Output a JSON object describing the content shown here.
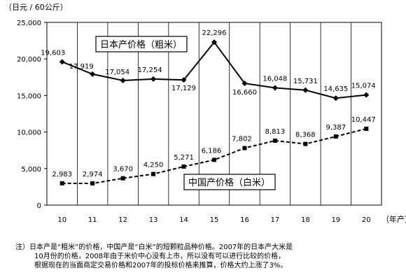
{
  "chart_data": {
    "type": "line",
    "y_unit_label": "（日元 / 60公斤）",
    "x_unit_label": "（年产）",
    "categories": [
      "10",
      "11",
      "12",
      "13",
      "14",
      "15",
      "16",
      "17",
      "18",
      "19",
      "20"
    ],
    "ylim": [
      0,
      25000
    ],
    "yticks": [
      0,
      5000,
      10000,
      15000,
      20000,
      25000
    ],
    "ytick_labels": [
      "0",
      "5,000",
      "10,000",
      "15,000",
      "20,000",
      "25,000"
    ],
    "grid": "vertical",
    "series": [
      {
        "name": "日本产价格（粗米）",
        "line_style": "solid",
        "marker": "diamond",
        "color": "#000000",
        "values": [
          19603,
          17919,
          17054,
          17254,
          17129,
          22296,
          16660,
          16048,
          15731,
          14635,
          15074
        ],
        "labels": [
          "19,603",
          "17,919",
          "17,054",
          "17,254",
          "17,129",
          "22,296",
          "16,660",
          "16,048",
          "15,731",
          "14,635",
          "15,074"
        ]
      },
      {
        "name": "中国产价格（白米）",
        "line_style": "dashed",
        "marker": "square",
        "color": "#000000",
        "values": [
          2983,
          2974,
          3670,
          4250,
          5271,
          6186,
          7802,
          8813,
          8368,
          9387,
          10447
        ],
        "labels": [
          "2,983",
          "2,974",
          "3,670",
          "4,250",
          "5,271",
          "6,186",
          "7,802",
          "8,813",
          "8,368",
          "9,387",
          "10,447"
        ]
      }
    ]
  },
  "note": {
    "lines": [
      "注）日本产是“粗米”的价格，中国产是“白米”的短颗粒品种价格。2007年的日本产大米是",
      "10月份的价格，2008年由于米价中心没有上市，所以没有可以进行比较的价格，",
      "根据现在的当面商定交易价格和2007年的投标价格来推算，价格大约上涨了3%。"
    ]
  }
}
